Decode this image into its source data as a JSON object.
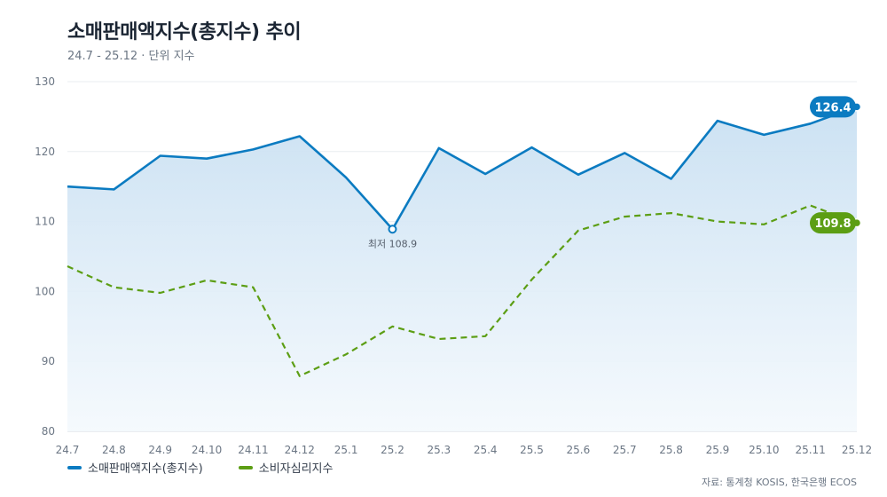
{
  "header": {
    "title": "소매판매액지수(총지수) 추이",
    "subtitle": "24.7 - 25.12 · 단위 지수"
  },
  "footer": {
    "source": "자료: 통계청 KOSIS, 한국은행 ECOS"
  },
  "colors": {
    "retail": "#0b7bc1",
    "consumer": "#5c9e14",
    "area_top": "#cfe4f3",
    "grid": "#e9edf1"
  },
  "chart_data": {
    "type": "line",
    "title": "소매판매액지수(총지수) 추이",
    "xlabel": "",
    "ylabel": "",
    "ylim": [
      80,
      130
    ],
    "yticks": [
      80,
      90,
      100,
      110,
      120,
      130
    ],
    "categories": [
      "24.7",
      "24.8",
      "24.9",
      "24.10",
      "24.11",
      "24.12",
      "25.1",
      "25.2",
      "25.3",
      "25.4",
      "25.5",
      "25.6",
      "25.7",
      "25.8",
      "25.9",
      "25.10",
      "25.11",
      "25.12"
    ],
    "grid": true,
    "legend": "bottom-left",
    "series": [
      {
        "name": "소매판매액지수(총지수)",
        "style": "solid-area",
        "values": [
          115.0,
          114.6,
          119.4,
          119.0,
          120.3,
          122.2,
          116.3,
          108.9,
          120.5,
          116.8,
          120.6,
          116.7,
          119.8,
          116.1,
          124.4,
          122.4,
          124.0,
          126.4
        ],
        "end_label": "126.4",
        "min_annotation": "최저 108.9",
        "min_index": 7
      },
      {
        "name": "소비자심리지수",
        "style": "dashed",
        "values": [
          103.6,
          100.6,
          99.8,
          101.6,
          100.6,
          87.9,
          91.0,
          95.0,
          93.2,
          93.6,
          101.7,
          108.7,
          110.7,
          111.2,
          110.0,
          109.6,
          112.3,
          109.8
        ],
        "end_label": "109.8"
      }
    ]
  }
}
